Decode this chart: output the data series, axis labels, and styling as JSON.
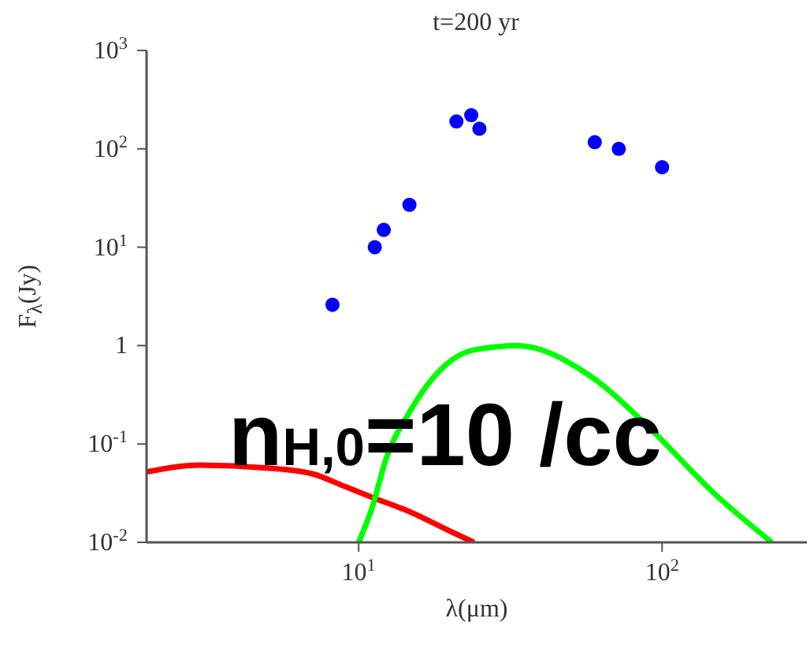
{
  "chart_data": {
    "type": "line",
    "title": "t=200 yr",
    "xlabel": "λ(μm)",
    "ylabel": "F$_{λ}$(Jy)",
    "log": "xy",
    "xlim": [
      2,
      300
    ],
    "ylim": [
      0.01,
      1000
    ],
    "xticks": [
      {
        "value": 10,
        "label": "10$^{1}$"
      },
      {
        "value": 100,
        "label": "10$^{2}$"
      }
    ],
    "yticks": [
      {
        "value": 0.01,
        "label": "10$^{-2}$"
      },
      {
        "value": 0.1,
        "label": "10$^{-1}$"
      },
      1,
      {
        "value": 10,
        "label": "10$^{1}$"
      },
      {
        "value": 100,
        "label": "10$^{2}$"
      },
      {
        "value": 1000,
        "label": "10$^{3}$"
      }
    ],
    "annotations": [
      "n$_{H,0}$=10 /cc"
    ],
    "series": [
      {
        "type": "scatter",
        "marker": "circle",
        "color": "#0000ff",
        "x": [
          8.2,
          11.3,
          12.1,
          14.7,
          21,
          23.5,
          25,
          60,
          72,
          100
        ],
        "values": [
          2.6,
          10,
          15,
          27,
          190,
          220,
          160,
          117,
          100,
          65
        ]
      },
      {
        "marker": "none",
        "color": "#ff0000",
        "x": [
          2,
          3,
          5,
          7,
          9,
          11.3,
          15,
          20,
          24
        ],
        "values": [
          0.052,
          0.061,
          0.057,
          0.05,
          0.037,
          0.028,
          0.02,
          0.013,
          0.01
        ]
      },
      {
        "marker": "none",
        "color": "#00ff00",
        "x": [
          10,
          11.1,
          12.3,
          14.7,
          19.4,
          23.8,
          33.4,
          57.5,
          90,
          151,
          230
        ],
        "values": [
          0.01,
          0.023,
          0.07,
          0.21,
          0.64,
          0.9,
          1,
          0.5,
          0.15,
          0.03,
          0.01
        ]
      }
    ]
  }
}
